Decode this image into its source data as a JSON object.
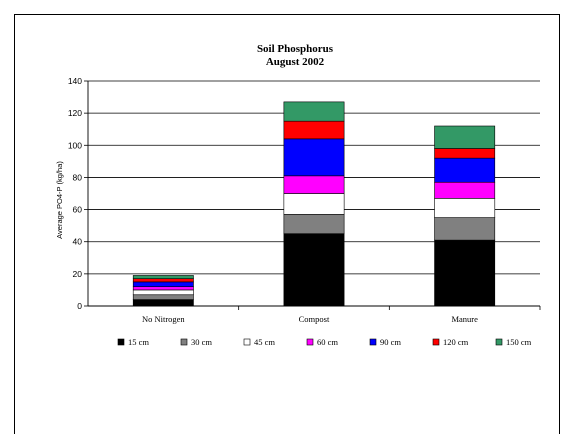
{
  "chart_data": {
    "type": "bar",
    "stacked": true,
    "title": "Soil Phosphorus",
    "subtitle": "August 2002",
    "xlabel": "",
    "ylabel": "Average PO4-P (kg/ha)",
    "ylim": [
      0,
      140
    ],
    "yticks": [
      "0",
      "20",
      "40",
      "60",
      "80",
      "100",
      "120",
      "140"
    ],
    "grid": true,
    "legend_position": "bottom",
    "categories": [
      "No Nitrogen",
      "Compost",
      "Manure"
    ],
    "series": [
      {
        "name": "15 cm",
        "color": "#000000",
        "values": [
          4,
          45,
          41
        ]
      },
      {
        "name": "30 cm",
        "color": "#808080",
        "values": [
          3,
          12,
          14
        ]
      },
      {
        "name": "45 cm",
        "color": "#ffffff",
        "values": [
          3,
          13,
          12
        ]
      },
      {
        "name": "60 cm",
        "color": "#ff00ff",
        "values": [
          2,
          11,
          10
        ]
      },
      {
        "name": "90 cm",
        "color": "#0000ff",
        "values": [
          3,
          23,
          15
        ]
      },
      {
        "name": "120 cm",
        "color": "#ff0000",
        "values": [
          2,
          11,
          6
        ]
      },
      {
        "name": "150 cm",
        "color": "#339966",
        "values": [
          2,
          12,
          14
        ]
      }
    ]
  }
}
